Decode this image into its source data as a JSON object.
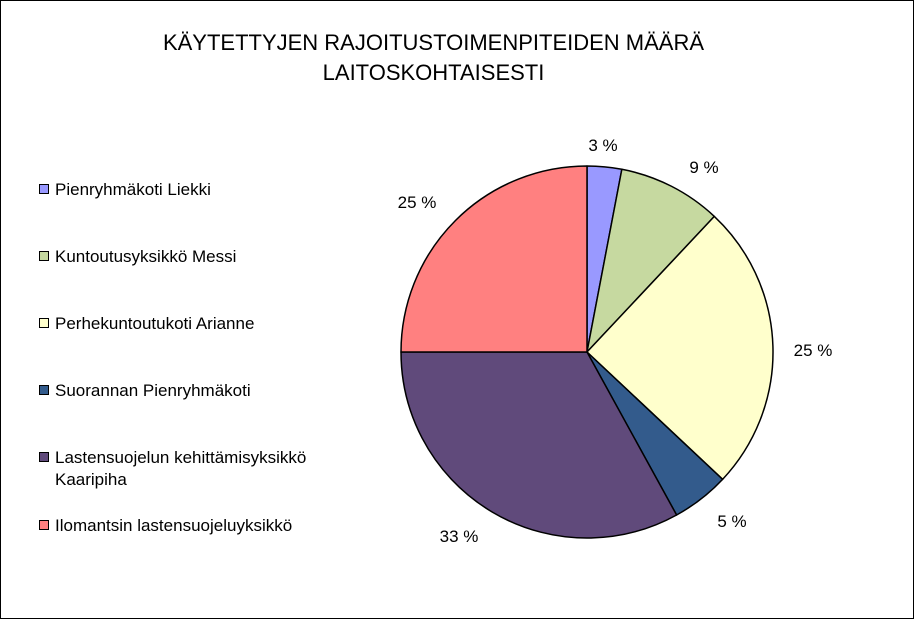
{
  "chart_data": {
    "type": "pie",
    "title": "KÄYTETTYJEN RAJOITUSTOIMENPITEIDEN MÄÄRÄ LAITOSKOHTAISESTI",
    "title_lines": [
      "KÄYTETTYJEN RAJOITUSTOIMENPITEIDEN MÄÄRÄ",
      "LAITOSKOHTAISESTI"
    ],
    "legend_position": "left",
    "slices": [
      {
        "name": "Pienryhmäkoti Liekki",
        "value": 3,
        "label": "3 %",
        "color": "#9999ff"
      },
      {
        "name": "Kuntoutusyksikkö Messi",
        "value": 9,
        "label": "9 %",
        "color": "#c6d9a0"
      },
      {
        "name": "Perhekuntoutukoti Arianne",
        "value": 25,
        "label": "25 %",
        "color": "#ffffcc"
      },
      {
        "name": "Suorannan Pienryhmäkoti",
        "value": 5,
        "label": "5 %",
        "color": "#335b8c"
      },
      {
        "name": "Lastensuojelun kehittämisyksikkö\nKaaripiha",
        "value": 33,
        "label": "33 %",
        "color": "#604a7b"
      },
      {
        "name": "Ilomantsin lastensuojeluyksikkö",
        "value": 25,
        "label": "25 %",
        "color": "#ff8080"
      }
    ]
  }
}
